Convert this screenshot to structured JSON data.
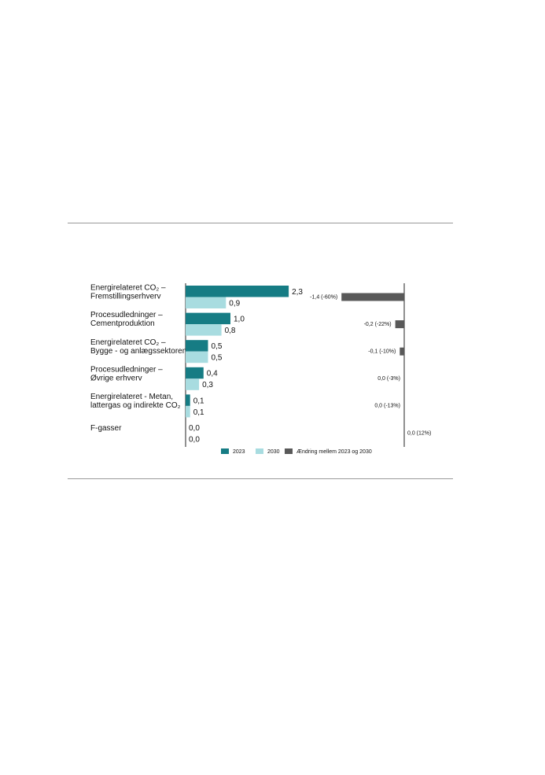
{
  "chart_data": {
    "type": "bar",
    "categories": [
      [
        "Energirelateret CO₂ –",
        "Fremstillingserhverv"
      ],
      [
        "Procesudledninger –",
        "Cementproduktion"
      ],
      [
        "Energirelateret CO₂ –",
        "Bygge - og anlægssektoren"
      ],
      [
        "Procesudledninger –",
        "Øvrige erhverv"
      ],
      [
        "Energirelateret - Metan,",
        " lattergas og indirekte CO₂"
      ],
      [
        "F-gasser"
      ]
    ],
    "series": [
      {
        "name": "2023",
        "color": "#167c84",
        "values": [
          2.3,
          1.0,
          0.5,
          0.4,
          0.1,
          0.0
        ],
        "value_labels": [
          "2,3",
          "1,0",
          "0,5",
          "0,4",
          "0,1",
          "0,0"
        ]
      },
      {
        "name": "2030",
        "color": "#a8dce0",
        "values": [
          0.9,
          0.8,
          0.5,
          0.3,
          0.1,
          0.0
        ],
        "value_labels": [
          "0,9",
          "0,8",
          "0,5",
          "0,3",
          "0,1",
          "0,0"
        ]
      },
      {
        "name": "Ændring mellem 2023 og 2030",
        "color": "#595959",
        "values": [
          -1.4,
          -0.2,
          -0.1,
          0.0,
          0.0,
          0.0
        ],
        "value_labels": [
          "-1,4 (-60%)",
          "-0,2 (-22%)",
          "-0,1 (-10%)",
          "0,0 (-3%)",
          "0,0 (-13%)",
          "0,0 (12%)"
        ]
      }
    ]
  }
}
